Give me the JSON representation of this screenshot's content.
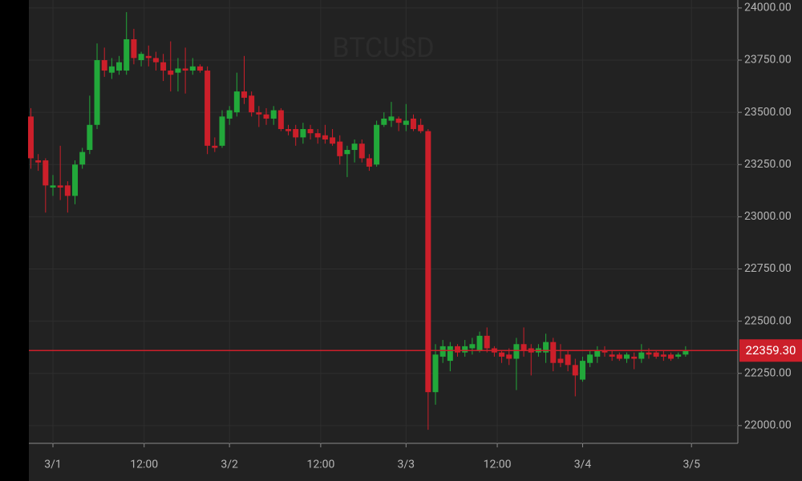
{
  "chart_data": {
    "type": "candlestick",
    "title": "BTCUSD",
    "x": [
      -3,
      -2,
      -1,
      0,
      1,
      2,
      3,
      4,
      5,
      6,
      7,
      8,
      9,
      10,
      11,
      12,
      13,
      14,
      15,
      16,
      17,
      18,
      19,
      20,
      21,
      22,
      23,
      24,
      25,
      26,
      27,
      28,
      29,
      30,
      31,
      32,
      33,
      34,
      35,
      36,
      37,
      38,
      39,
      40,
      41,
      42,
      43,
      44,
      45,
      46,
      47,
      48,
      49,
      50,
      51,
      52,
      53,
      54,
      55,
      56,
      57,
      58,
      59,
      60,
      61,
      62,
      63,
      64,
      65,
      66,
      67,
      68,
      69,
      70,
      71,
      72,
      73,
      74,
      75,
      76,
      77,
      78,
      79,
      80,
      81,
      82,
      83,
      84,
      85,
      86
    ],
    "series": [
      {
        "name": "BTCUSD",
        "up_color": "#22a83a",
        "down_color": "#cc1f2a",
        "ohlc": [
          [
            23480,
            23520,
            23230,
            23280
          ],
          [
            23270,
            23300,
            23220,
            23260
          ],
          [
            23270,
            23280,
            23020,
            23150
          ],
          [
            23140,
            23200,
            23100,
            23150
          ],
          [
            23150,
            23340,
            23080,
            23140
          ],
          [
            23150,
            23170,
            23020,
            23100
          ],
          [
            23100,
            23270,
            23060,
            23250
          ],
          [
            23250,
            23330,
            23230,
            23310
          ],
          [
            23320,
            23580,
            23300,
            23440
          ],
          [
            23440,
            23830,
            23420,
            23750
          ],
          [
            23750,
            23810,
            23670,
            23700
          ],
          [
            23690,
            23760,
            23660,
            23720
          ],
          [
            23700,
            23770,
            23680,
            23740
          ],
          [
            23700,
            23980,
            23680,
            23850
          ],
          [
            23850,
            23900,
            23730,
            23760
          ],
          [
            23750,
            23790,
            23720,
            23780
          ],
          [
            23770,
            23820,
            23720,
            23760
          ],
          [
            23760,
            23790,
            23700,
            23740
          ],
          [
            23740,
            23780,
            23650,
            23700
          ],
          [
            23700,
            23840,
            23600,
            23680
          ],
          [
            23690,
            23760,
            23600,
            23710
          ],
          [
            23710,
            23810,
            23590,
            23700
          ],
          [
            23700,
            23760,
            23680,
            23720
          ],
          [
            23720,
            23730,
            23690,
            23700
          ],
          [
            23700,
            23720,
            23300,
            23340
          ],
          [
            23340,
            23380,
            23310,
            23330
          ],
          [
            23340,
            23510,
            23330,
            23480
          ],
          [
            23470,
            23530,
            23440,
            23510
          ],
          [
            23500,
            23690,
            23480,
            23600
          ],
          [
            23600,
            23770,
            23540,
            23570
          ],
          [
            23580,
            23600,
            23480,
            23500
          ],
          [
            23500,
            23530,
            23430,
            23490
          ],
          [
            23490,
            23520,
            23440,
            23470
          ],
          [
            23470,
            23530,
            23440,
            23510
          ],
          [
            23510,
            23520,
            23410,
            23420
          ],
          [
            23420,
            23440,
            23390,
            23410
          ],
          [
            23420,
            23440,
            23340,
            23380
          ],
          [
            23380,
            23450,
            23350,
            23420
          ],
          [
            23420,
            23440,
            23370,
            23400
          ],
          [
            23400,
            23420,
            23350,
            23380
          ],
          [
            23390,
            23440,
            23350,
            23370
          ],
          [
            23380,
            23420,
            23340,
            23350
          ],
          [
            23360,
            23390,
            23250,
            23290
          ],
          [
            23300,
            23340,
            23190,
            23320
          ],
          [
            23320,
            23370,
            23260,
            23350
          ],
          [
            23350,
            23370,
            23260,
            23280
          ],
          [
            23280,
            23300,
            23220,
            23240
          ],
          [
            23250,
            23460,
            23240,
            23440
          ],
          [
            23440,
            23500,
            23430,
            23470
          ],
          [
            23460,
            23550,
            23430,
            23480
          ],
          [
            23470,
            23480,
            23410,
            23450
          ],
          [
            23440,
            23540,
            23410,
            23460
          ],
          [
            23470,
            23490,
            23410,
            23420
          ],
          [
            23440,
            23470,
            23400,
            23410
          ],
          [
            23410,
            23420,
            21980,
            22160
          ],
          [
            22160,
            22390,
            22100,
            22340
          ],
          [
            22330,
            22410,
            22300,
            22380
          ],
          [
            22310,
            22400,
            22260,
            22380
          ],
          [
            22380,
            22390,
            22330,
            22350
          ],
          [
            22350,
            22410,
            22330,
            22380
          ],
          [
            22370,
            22420,
            22340,
            22390
          ],
          [
            22360,
            22450,
            22350,
            22430
          ],
          [
            22430,
            22470,
            22350,
            22370
          ],
          [
            22370,
            22380,
            22330,
            22350
          ],
          [
            22350,
            22360,
            22300,
            22330
          ],
          [
            22340,
            22370,
            22290,
            22320
          ],
          [
            22320,
            22420,
            22170,
            22390
          ],
          [
            22390,
            22470,
            22330,
            22360
          ],
          [
            22370,
            22390,
            22240,
            22350
          ],
          [
            22350,
            22390,
            22330,
            22370
          ],
          [
            22350,
            22440,
            22300,
            22400
          ],
          [
            22400,
            22420,
            22260,
            22300
          ],
          [
            22320,
            22390,
            22280,
            22300
          ],
          [
            22340,
            22360,
            22260,
            22290
          ],
          [
            22290,
            22320,
            22140,
            22240
          ],
          [
            22220,
            22330,
            22210,
            22310
          ],
          [
            22300,
            22360,
            22280,
            22340
          ],
          [
            22330,
            22380,
            22300,
            22360
          ],
          [
            22360,
            22380,
            22330,
            22350
          ],
          [
            22340,
            22360,
            22310,
            22330
          ],
          [
            22340,
            22350,
            22310,
            22320
          ],
          [
            22320,
            22350,
            22300,
            22340
          ],
          [
            22330,
            22350,
            22270,
            22320
          ],
          [
            22320,
            22390,
            22300,
            22350
          ],
          [
            22350,
            22370,
            22320,
            22340
          ],
          [
            22350,
            22360,
            22320,
            22330
          ],
          [
            22340,
            22360,
            22310,
            22330
          ],
          [
            22340,
            22350,
            22310,
            22320
          ],
          [
            22330,
            22350,
            22320,
            22340
          ],
          [
            22340,
            22380,
            22330,
            22360
          ]
        ]
      }
    ],
    "xlim": [
      -3.27,
      93.1
    ],
    "xticks": [
      {
        "value": 0,
        "label": "3/1"
      },
      {
        "value": 12.4,
        "label": "12:00"
      },
      {
        "value": 24,
        "label": "3/2"
      },
      {
        "value": 36.4,
        "label": "12:00"
      },
      {
        "value": 48,
        "label": "3/3"
      },
      {
        "value": 60.4,
        "label": "12:00"
      },
      {
        "value": 72,
        "label": "3/4"
      },
      {
        "value": 86.8,
        "label": "3/5"
      }
    ],
    "ylim": [
      21915,
      24038
    ],
    "yticks": [
      {
        "value": 22000,
        "label": "22000.00"
      },
      {
        "value": 22250,
        "label": "22250.00"
      },
      {
        "value": 22500,
        "label": "22500.00"
      },
      {
        "value": 22750,
        "label": "22750.00"
      },
      {
        "value": 23000,
        "label": "23000.00"
      },
      {
        "value": 23250,
        "label": "23250.00"
      },
      {
        "value": 23500,
        "label": "23500.00"
      },
      {
        "value": 23750,
        "label": "23750.00"
      },
      {
        "value": 24000,
        "label": "24000.00"
      }
    ],
    "grid": true,
    "last_price": {
      "value": 22359.3,
      "label": "22359.30",
      "color": "#cc1f2a"
    }
  }
}
